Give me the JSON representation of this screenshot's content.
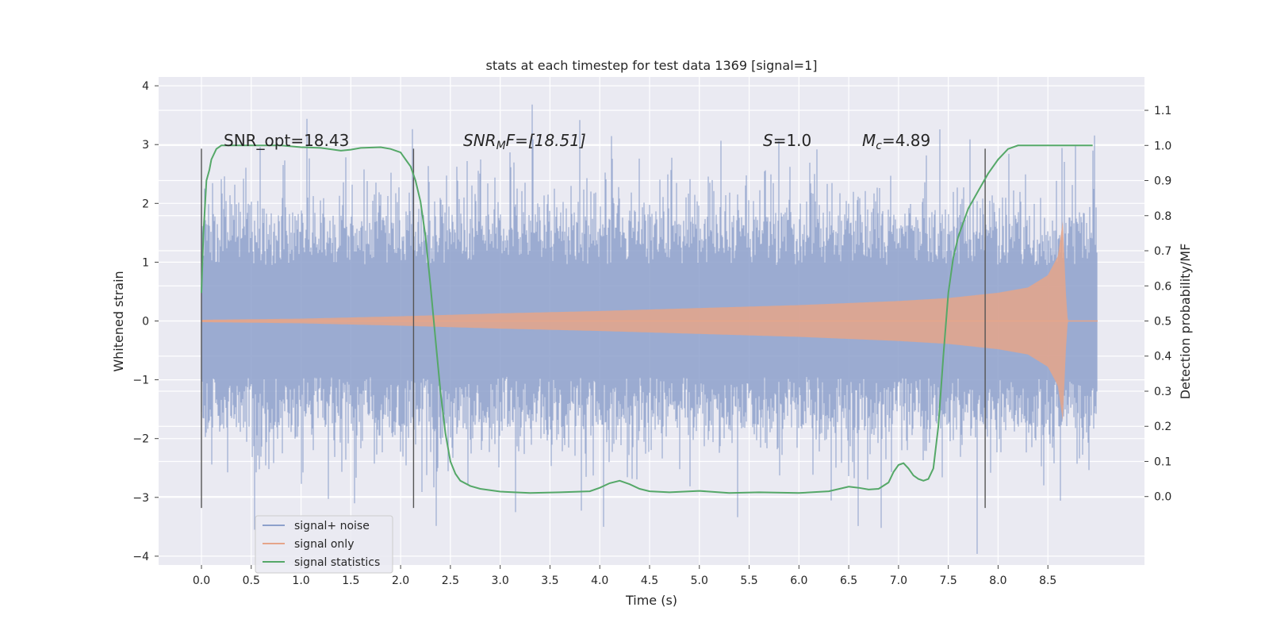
{
  "chart_data": {
    "type": "line",
    "title": "stats at each timestep for test data 1369 [signal=1]",
    "xlabel": "Time (s)",
    "ylabel": "Whitened strain",
    "y2label": "Detection probability/MF",
    "xlim": [
      -0.43,
      9.47
    ],
    "ylim": [
      -4.15,
      4.15
    ],
    "y2lim": [
      -0.195,
      1.195
    ],
    "x_ticks": [
      0.0,
      0.5,
      1.0,
      1.5,
      2.0,
      2.5,
      3.0,
      3.5,
      4.0,
      4.5,
      5.0,
      5.5,
      6.0,
      6.5,
      7.0,
      7.5,
      8.0,
      8.5
    ],
    "x_tick_labels": [
      "0.0",
      "0.5",
      "1.0",
      "1.5",
      "2.0",
      "2.5",
      "3.0",
      "3.5",
      "4.0",
      "4.5",
      "5.0",
      "5.5",
      "6.0",
      "6.5",
      "7.0",
      "7.5",
      "8.0",
      "8.5"
    ],
    "y_ticks": [
      -4,
      -3,
      -2,
      -1,
      0,
      1,
      2,
      3,
      4
    ],
    "y_tick_labels": [
      "−4",
      "−3",
      "−2",
      "−1",
      "0",
      "1",
      "2",
      "3",
      "4"
    ],
    "y2_ticks": [
      0.0,
      0.1,
      0.2,
      0.3,
      0.4,
      0.5,
      0.6,
      0.7,
      0.8,
      0.9,
      1.0,
      1.1
    ],
    "y2_tick_labels": [
      "0.0",
      "0.1",
      "0.2",
      "0.3",
      "0.4",
      "0.5",
      "0.6",
      "0.7",
      "0.8",
      "0.9",
      "1.0",
      "1.1"
    ],
    "series": [
      {
        "name": "signal+ noise",
        "color": "#8da0cb",
        "axis": "left",
        "description": "whitened noisy strain, roughly +/-2 amplitude with spikes to about +/-3.7",
        "x_range": [
          0.0,
          9.0
        ],
        "typical_amplitude": 2.0,
        "peak_high": 3.8,
        "peak_low": -4.0
      },
      {
        "name": "signal only",
        "color": "#e5a58a",
        "axis": "left",
        "description": "chirp signal, amplitude grows from ~0.02 to ~1.7, merger near t=8.65 s",
        "x_range": [
          0.0,
          9.0
        ],
        "envelope_t": [
          0.0,
          1.0,
          2.0,
          3.0,
          4.0,
          5.0,
          6.0,
          7.0,
          7.5,
          8.0,
          8.3,
          8.5,
          8.6,
          8.65,
          8.68,
          8.7
        ],
        "envelope_a": [
          0.02,
          0.04,
          0.08,
          0.13,
          0.17,
          0.22,
          0.27,
          0.34,
          0.39,
          0.48,
          0.57,
          0.78,
          1.1,
          1.7,
          0.5,
          0.0
        ]
      },
      {
        "name": "signal statistics",
        "color": "#55a868",
        "axis": "right",
        "x": [
          0.0,
          0.02,
          0.05,
          0.08,
          0.1,
          0.15,
          0.2,
          0.3,
          0.5,
          0.8,
          1.0,
          1.2,
          1.4,
          1.5,
          1.6,
          1.8,
          1.9,
          2.0,
          2.05,
          2.1,
          2.15,
          2.2,
          2.25,
          2.3,
          2.35,
          2.4,
          2.45,
          2.5,
          2.55,
          2.6,
          2.7,
          2.8,
          3.0,
          3.3,
          3.6,
          3.9,
          4.0,
          4.1,
          4.2,
          4.3,
          4.4,
          4.5,
          4.7,
          5.0,
          5.3,
          5.6,
          6.0,
          6.3,
          6.5,
          6.6,
          6.7,
          6.8,
          6.9,
          6.95,
          7.0,
          7.05,
          7.1,
          7.15,
          7.2,
          7.25,
          7.3,
          7.35,
          7.4,
          7.45,
          7.5,
          7.55,
          7.6,
          7.65,
          7.7,
          7.8,
          7.9,
          8.0,
          8.1,
          8.2,
          8.3,
          8.5,
          8.8,
          8.95
        ],
        "y": [
          0.58,
          0.75,
          0.9,
          0.93,
          0.96,
          0.99,
          1.0,
          1.0,
          1.0,
          1.0,
          0.995,
          0.993,
          0.985,
          0.988,
          0.993,
          0.995,
          0.99,
          0.98,
          0.96,
          0.94,
          0.9,
          0.84,
          0.74,
          0.6,
          0.45,
          0.3,
          0.18,
          0.1,
          0.065,
          0.045,
          0.03,
          0.022,
          0.014,
          0.01,
          0.012,
          0.015,
          0.025,
          0.038,
          0.045,
          0.035,
          0.022,
          0.015,
          0.012,
          0.016,
          0.01,
          0.012,
          0.01,
          0.015,
          0.028,
          0.025,
          0.02,
          0.022,
          0.04,
          0.07,
          0.09,
          0.095,
          0.08,
          0.06,
          0.05,
          0.045,
          0.05,
          0.08,
          0.2,
          0.4,
          0.58,
          0.68,
          0.74,
          0.78,
          0.82,
          0.87,
          0.92,
          0.96,
          0.99,
          1.0,
          1.0,
          1.0,
          1.0,
          1.0
        ]
      }
    ],
    "vertical_lines": [
      0.0,
      2.13,
      7.87
    ],
    "vertical_line_range": [
      -3.18,
      2.93
    ],
    "annotations": {
      "snr_opt": "SNR_opt=18.43",
      "snr_mf_a": "SNR",
      "snr_mf_sub": "M",
      "snr_mf_b": "F=[18.51]",
      "s_a": "S",
      "s_b": "=1.0",
      "mc_a": "M",
      "mc_sub": "c",
      "mc_b": "=4.89"
    },
    "legend": {
      "placement": "lower-left",
      "entries": [
        "signal+ noise",
        "signal only",
        "signal statistics"
      ]
    },
    "grid": true,
    "background": "#eaeaf2"
  }
}
